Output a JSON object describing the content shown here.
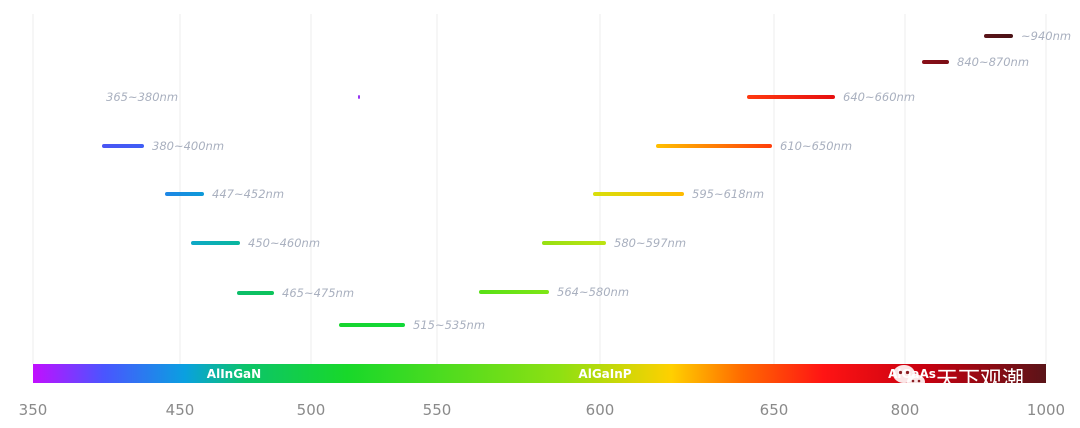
{
  "chart_data": {
    "type": "range-bar",
    "title": "",
    "xlabel": "",
    "ylabel": "",
    "grid": true,
    "x_ticks": [
      350,
      450,
      500,
      550,
      600,
      650,
      800,
      1000
    ],
    "ranges": [
      {
        "label": "365~380nm",
        "min": 365,
        "max": 380,
        "color_start": "#8b2ff0",
        "color_end": "#9a2cf5"
      },
      {
        "label": "380~400nm",
        "min": 380,
        "max": 400,
        "color_start": "#4a55f4",
        "color_end": "#3f5ef5"
      },
      {
        "label": "447~452nm",
        "min": 447,
        "max": 452,
        "color_start": "#1e86e6",
        "color_end": "#0d9ad8"
      },
      {
        "label": "450~460nm",
        "min": 450,
        "max": 460,
        "color_start": "#0ea8c8",
        "color_end": "#08b79d"
      },
      {
        "label": "465~475nm",
        "min": 465,
        "max": 475,
        "color_start": "#0cbd6a",
        "color_end": "#0cc45a"
      },
      {
        "label": "515~535nm",
        "min": 515,
        "max": 535,
        "color_start": "#17d52e",
        "color_end": "#12d838"
      },
      {
        "label": "564~580nm",
        "min": 564,
        "max": 580,
        "color_start": "#58e016",
        "color_end": "#7fe616"
      },
      {
        "label": "580~597nm",
        "min": 580,
        "max": 597,
        "color_start": "#96e012",
        "color_end": "#bde311"
      },
      {
        "label": "595~618nm",
        "min": 595,
        "max": 618,
        "color_start": "#d8df0b",
        "color_end": "#ffba00"
      },
      {
        "label": "610~650nm",
        "min": 610,
        "max": 650,
        "color_start": "#ffc000",
        "color_end": "#ff3d0a"
      },
      {
        "label": "640~660nm",
        "min": 640,
        "max": 660,
        "color_start": "#ff3a10",
        "color_end": "#e60f0f"
      },
      {
        "label": "840~870nm",
        "min": 840,
        "max": 870,
        "color_start": "#8a0f18",
        "color_end": "#7a0e16"
      },
      {
        "label": "~940nm",
        "min": 930,
        "max": 950,
        "color_start": "#5b1419",
        "color_end": "#4a1216"
      }
    ],
    "materials": [
      "AlInGaN",
      "AlGaInP",
      "AlGaAs"
    ],
    "spectrum_colors": [
      "#c20fff",
      "#4a55ff",
      "#0aa0e0",
      "#0cc46a",
      "#18d82a",
      "#8ee012",
      "#ffd000",
      "#ff6a00",
      "#ff1414",
      "#c80010",
      "#5a1418"
    ]
  },
  "watermark": {
    "text": "天下观潮",
    "icon": "wechat-icon"
  }
}
